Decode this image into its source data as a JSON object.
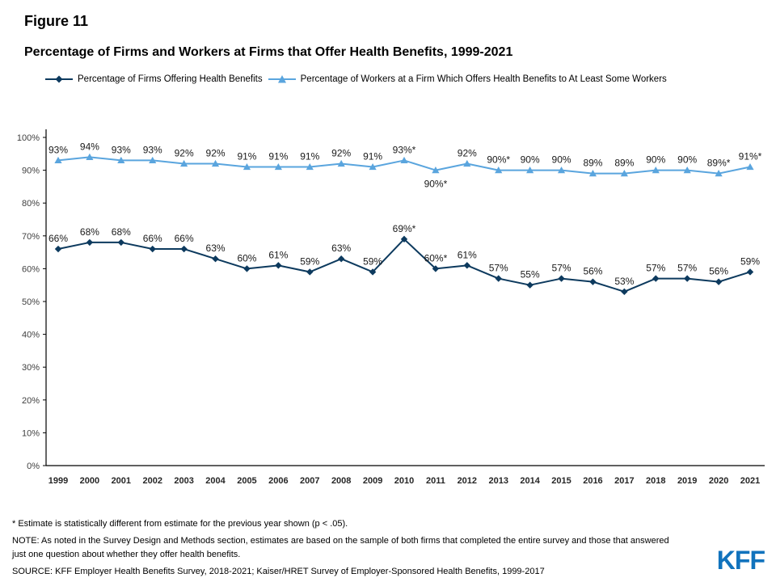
{
  "header": {
    "figure_label": "Figure 11",
    "title": "Percentage of Firms and Workers at Firms that Offer Health Benefits, 1999-2021"
  },
  "legend": [
    {
      "label": "Percentage of Firms Offering Health Benefits",
      "color": "#0d3a5e",
      "marker": "diamond"
    },
    {
      "label": "Percentage of Workers at a Firm Which Offers Health Benefits to At Least Some Workers",
      "color": "#5aa5de",
      "marker": "triangle"
    }
  ],
  "chart_data": {
    "type": "line",
    "title": "Percentage of Firms and Workers at Firms that Offer Health Benefits, 1999-2021",
    "categories": [
      "1999",
      "2000",
      "2001",
      "2002",
      "2003",
      "2004",
      "2005",
      "2006",
      "2007",
      "2008",
      "2009",
      "2010",
      "2011",
      "2012",
      "2013",
      "2014",
      "2015",
      "2016",
      "2017",
      "2018",
      "2019",
      "2020",
      "2021"
    ],
    "series": [
      {
        "id": "firms",
        "name": "Percentage of Firms Offering Health Benefits",
        "color": "#0d3a5e",
        "marker": "diamond",
        "values": [
          66,
          68,
          68,
          66,
          66,
          63,
          60,
          61,
          59,
          63,
          59,
          69,
          60,
          61,
          57,
          55,
          57,
          56,
          53,
          57,
          57,
          56,
          59
        ],
        "labels": [
          "66%",
          "68%",
          "68%",
          "66%",
          "66%",
          "63%",
          "60%",
          "61%",
          "59%",
          "63%",
          "59%",
          "69%*",
          "60%*",
          "61%",
          "57%",
          "55%",
          "57%",
          "56%",
          "53%",
          "57%",
          "57%",
          "56%",
          "59%"
        ]
      },
      {
        "id": "workers",
        "name": "Percentage of Workers at a Firm Which Offers Health Benefits to At Least Some Workers",
        "color": "#5aa5de",
        "marker": "triangle",
        "values": [
          93,
          94,
          93,
          93,
          92,
          92,
          91,
          91,
          91,
          92,
          91,
          93,
          90,
          92,
          90,
          90,
          90,
          89,
          89,
          90,
          90,
          89,
          91
        ],
        "labels": [
          "93%",
          "94%",
          "93%",
          "93%",
          "92%",
          "92%",
          "91%",
          "91%",
          "91%",
          "92%",
          "91%",
          "93%*",
          "90%*",
          "92%",
          "90%*",
          "90%",
          "90%",
          "89%",
          "89%",
          "90%",
          "90%",
          "89%*",
          "91%*"
        ]
      }
    ],
    "xlabel": "",
    "ylabel": "",
    "ylim": [
      0,
      100
    ],
    "ytick_step": 10,
    "ytick_suffix": "%",
    "grid": false,
    "legend_position": "top"
  },
  "footnotes": [
    "* Estimate is statistically different from estimate for the previous year shown (p < .05).",
    "NOTE: As noted in the Survey Design and Methods section, estimates are based on the sample of both firms that completed the entire survey and those that answered just one question about whether they offer health benefits.",
    "SOURCE: KFF Employer Health Benefits Survey, 2018-2021; Kaiser/HRET Survey of Employer-Sponsored Health Benefits, 1999-2017"
  ],
  "logo": {
    "text": "KFF",
    "color": "#1173bd"
  }
}
